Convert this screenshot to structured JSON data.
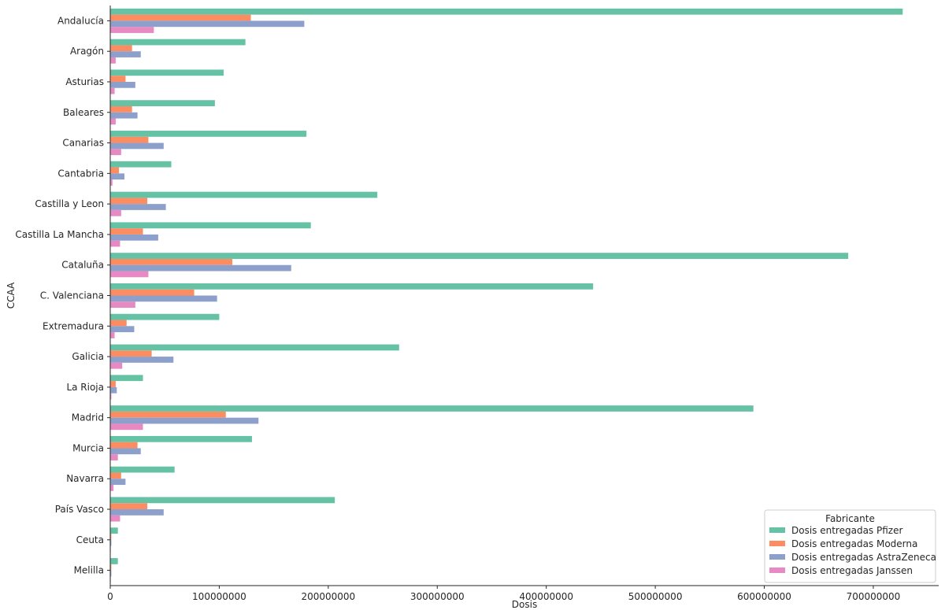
{
  "chart_data": {
    "type": "bar",
    "orientation": "horizontal",
    "xlabel": "Dosis",
    "ylabel": "CCAA",
    "xlim": [
      0,
      760000000
    ],
    "xticks": [
      0,
      100000000,
      200000000,
      300000000,
      400000000,
      500000000,
      600000000,
      700000000
    ],
    "xtick_labels": [
      "0",
      "100000000",
      "200000000",
      "300000000",
      "400000000",
      "500000000",
      "600000000",
      "700000000"
    ],
    "grid": false,
    "legend": {
      "title": "Fabricante",
      "placement": "lower-right"
    },
    "categories": [
      "Andalucía",
      "Aragón",
      "Asturias",
      "Baleares",
      "Canarias",
      "Cantabria",
      "Castilla y Leon",
      "Castilla La Mancha",
      "Cataluña",
      "C. Valenciana",
      "Extremadura",
      "Galicia",
      "La Rioja",
      "Madrid",
      "Murcia",
      "Navarra",
      "País Vasco",
      "Ceuta",
      "Melilla"
    ],
    "series": [
      {
        "name": "Dosis entregadas Pfizer",
        "color": "#66c2a5",
        "values": [
          727000000,
          124000000,
          104000000,
          96000000,
          180000000,
          56000000,
          245000000,
          184000000,
          677000000,
          443000000,
          100000000,
          265000000,
          30000000,
          590000000,
          130000000,
          59000000,
          206000000,
          7000000,
          7000000
        ]
      },
      {
        "name": "Dosis entregadas Moderna",
        "color": "#fc8d62",
        "values": [
          129000000,
          20000000,
          14000000,
          20000000,
          35000000,
          8000000,
          34000000,
          30000000,
          112000000,
          77000000,
          15000000,
          38000000,
          5000000,
          106000000,
          25000000,
          10000000,
          34000000,
          1000000,
          1000000
        ]
      },
      {
        "name": "Dosis entregadas AstraZeneca",
        "color": "#8da0cb",
        "values": [
          178000000,
          28000000,
          23000000,
          25000000,
          49000000,
          13000000,
          51000000,
          44000000,
          166000000,
          98000000,
          22000000,
          58000000,
          6000000,
          136000000,
          28000000,
          14000000,
          49000000,
          1000000,
          1000000
        ]
      },
      {
        "name": "Dosis entregadas Janssen",
        "color": "#e78ac3",
        "values": [
          40000000,
          5000000,
          4000000,
          5000000,
          10000000,
          2000000,
          10000000,
          9000000,
          35000000,
          23000000,
          4000000,
          11000000,
          1000000,
          30000000,
          7000000,
          3000000,
          9000000,
          500000,
          500000
        ]
      }
    ]
  }
}
